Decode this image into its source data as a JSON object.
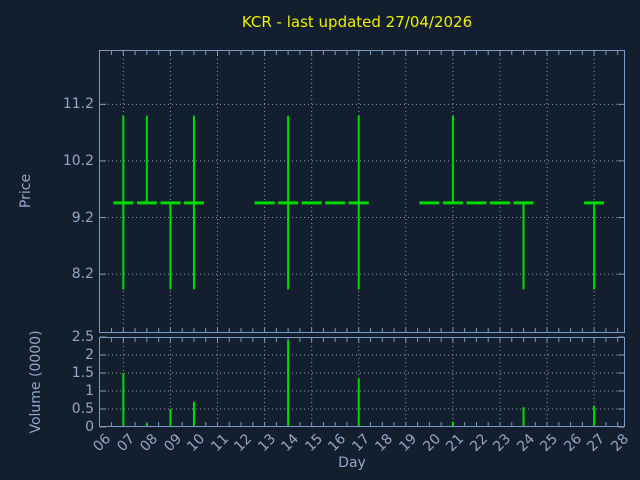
{
  "title": "KCR - last updated 27/04/2026",
  "colors": {
    "background": "#131e2f",
    "axis": "#7b9cc2",
    "label": "#8fa9c7",
    "grid": "#aab2ba",
    "series_green": "#00dc00",
    "title_yellow": "#f0f000"
  },
  "x_axis": {
    "label": "Day",
    "tick_labels": [
      "06",
      "07",
      "08",
      "09",
      "10",
      "11",
      "12",
      "13",
      "14",
      "15",
      "16",
      "17",
      "18",
      "19",
      "20",
      "21",
      "22",
      "23",
      "24",
      "25",
      "26",
      "27",
      "28"
    ],
    "tick_days": [
      6,
      7,
      8,
      9,
      10,
      11,
      12,
      13,
      14,
      15,
      16,
      17,
      18,
      19,
      20,
      21,
      22,
      23,
      24,
      25,
      26,
      27,
      28
    ],
    "grid_days": [
      7,
      9,
      11,
      13,
      15,
      17,
      19,
      21,
      23,
      25,
      27
    ],
    "minor_tick_step": 0.5,
    "range": [
      6,
      28.3
    ]
  },
  "chart_data": [
    {
      "type": "bar",
      "subtype": "high-low-close",
      "title": "KCR - last updated 27/04/2026",
      "xlabel": "Day",
      "ylabel": "Price",
      "ylim": [
        7.2,
        12.2
      ],
      "xlim": [
        6,
        28.3
      ],
      "grid": true,
      "legend": "none",
      "y_ticks": [
        8.2,
        9.2,
        10.2,
        11.2
      ],
      "y_tick_labels": [
        "8.2",
        "9.2",
        "10.2",
        "11.2"
      ],
      "points": [
        {
          "day": 7,
          "high": 11.0,
          "low": 7.93,
          "close": 9.46
        },
        {
          "day": 8,
          "high": 11.0,
          "low": 9.46,
          "close": 9.46
        },
        {
          "day": 9,
          "high": 9.46,
          "low": 7.93,
          "close": 9.46
        },
        {
          "day": 10,
          "high": 11.0,
          "low": 7.93,
          "close": 9.46
        },
        {
          "day": 13,
          "high": 9.46,
          "low": 9.46,
          "close": 9.46
        },
        {
          "day": 14,
          "high": 11.0,
          "low": 7.93,
          "close": 9.46
        },
        {
          "day": 15,
          "high": 9.46,
          "low": 9.46,
          "close": 9.46
        },
        {
          "day": 16,
          "high": 9.46,
          "low": 9.46,
          "close": 9.46
        },
        {
          "day": 17,
          "high": 11.0,
          "low": 7.93,
          "close": 9.46
        },
        {
          "day": 20,
          "high": 9.46,
          "low": 9.46,
          "close": 9.46
        },
        {
          "day": 21,
          "high": 11.0,
          "low": 9.46,
          "close": 9.46
        },
        {
          "day": 22,
          "high": 9.46,
          "low": 9.46,
          "close": 9.46
        },
        {
          "day": 23,
          "high": 9.46,
          "low": 9.46,
          "close": 9.46
        },
        {
          "day": 24,
          "high": 9.46,
          "low": 7.93,
          "close": 9.46
        },
        {
          "day": 27,
          "high": 9.46,
          "low": 7.93,
          "close": 9.46
        }
      ]
    },
    {
      "type": "bar",
      "subtype": "impulses",
      "xlabel": "Day",
      "ylabel": "Volume (0000)",
      "ylim": [
        0,
        2.5
      ],
      "xlim": [
        6,
        28.3
      ],
      "grid": true,
      "legend": "none",
      "y_ticks": [
        0,
        0.5,
        1,
        1.5,
        2,
        2.5
      ],
      "y_tick_labels": [
        "0",
        "0.5",
        "1",
        "1.5",
        "2",
        "2.5"
      ],
      "points": [
        {
          "day": 7,
          "volume": 1.5
        },
        {
          "day": 8,
          "volume": 0.1
        },
        {
          "day": 9,
          "volume": 0.5
        },
        {
          "day": 10,
          "volume": 0.7
        },
        {
          "day": 14,
          "volume": 2.4
        },
        {
          "day": 17,
          "volume": 1.35
        },
        {
          "day": 21,
          "volume": 0.15
        },
        {
          "day": 24,
          "volume": 0.55
        },
        {
          "day": 27,
          "volume": 0.6
        }
      ]
    }
  ]
}
